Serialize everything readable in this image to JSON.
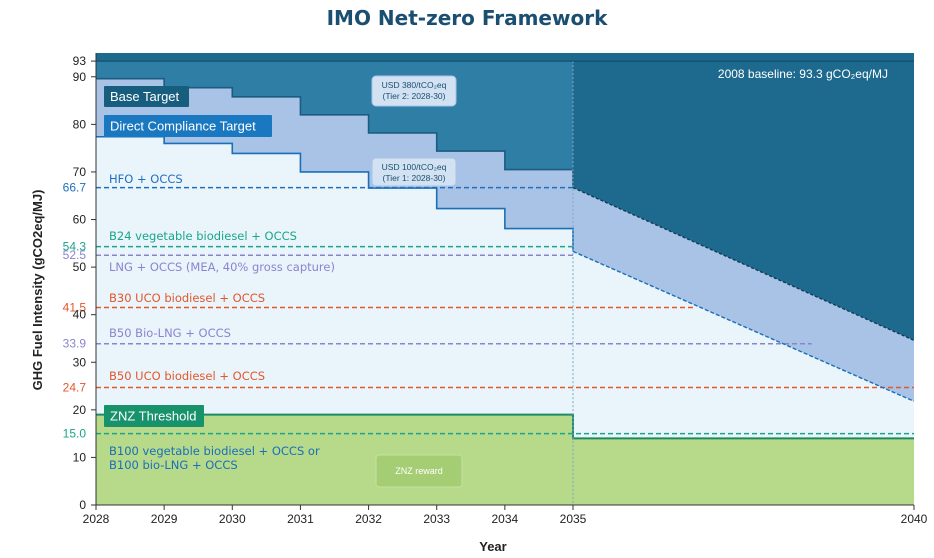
{
  "chart_data": {
    "type": "area",
    "title": "IMO Net-zero Framework",
    "xlabel": "Year",
    "ylabel": "GHG Fuel Intensity (gCO2eq/MJ)",
    "ylim": [
      0,
      95
    ],
    "xlim": [
      2028,
      2040
    ],
    "x_ticks": [
      2028,
      2029,
      2030,
      2031,
      2032,
      2033,
      2034,
      2035,
      2040
    ],
    "y_ticks": [
      0,
      10,
      20,
      30,
      40,
      50,
      60,
      70,
      80,
      90
    ],
    "baseline": {
      "value": 93.3,
      "tick_label": "93",
      "note": "2008 baseline: 93.3 gCO₂eq/MJ"
    },
    "base_target": {
      "name": "Base Target",
      "x": [
        2028,
        2029,
        2029,
        2030,
        2030,
        2031,
        2031,
        2032,
        2032,
        2033,
        2033,
        2034,
        2034,
        2035,
        2035,
        2040
      ],
      "y": [
        89.6,
        89.6,
        87.7,
        87.7,
        85.8,
        85.8,
        82.0,
        82.0,
        78.2,
        78.2,
        74.4,
        74.4,
        70.5,
        70.5,
        66.7,
        34.6
      ]
    },
    "direct_compliance_target": {
      "name": "Direct Compliance Target",
      "x": [
        2028,
        2029,
        2029,
        2030,
        2030,
        2031,
        2031,
        2032,
        2032,
        2033,
        2033,
        2034,
        2034,
        2035,
        2035,
        2040
      ],
      "y": [
        77.4,
        77.4,
        76.0,
        76.0,
        73.9,
        73.9,
        70.0,
        70.0,
        66.6,
        66.6,
        62.3,
        62.3,
        58.1,
        58.1,
        53.3,
        21.8
      ]
    },
    "znz_threshold": {
      "name": "ZNZ Threshold",
      "x": [
        2028,
        2035,
        2035,
        2040
      ],
      "y": [
        19.0,
        19.0,
        14.0,
        14.0
      ]
    },
    "reference_lines": [
      {
        "value": 66.7,
        "label": "66.7",
        "name": "HFO + OCCS",
        "color": "#1f6fc0",
        "x_end": 2035
      },
      {
        "value": 54.3,
        "label": "54.3",
        "name": "B24 vegetable biodiesel + OCCS",
        "color": "#1aa58a",
        "x_end": 2035
      },
      {
        "value": 52.5,
        "label": "52.5",
        "name": "LNG + OCCS (MEA, 40% gross capture)",
        "color": "#8a84d0",
        "x_end": 2035
      },
      {
        "value": 41.5,
        "label": "41.5",
        "name": "B30 UCO biodiesel + OCCS",
        "color": "#e2572b",
        "x_end": 2036.8
      },
      {
        "value": 33.9,
        "label": "33.9",
        "name": "B50 Bio-LNG + OCCS",
        "color": "#8a84d0",
        "x_end": 2038.5
      },
      {
        "value": 24.7,
        "label": "24.7",
        "name": "B50 UCO biodiesel + OCCS",
        "color": "#e2572b",
        "x_end": 2040
      },
      {
        "value": 15.0,
        "label": "15.0",
        "name": "B100 vegetable biodiesel + OCCS or\nB100 bio-LNG + OCCS",
        "name_lines": [
          "B100 vegetable biodiesel + OCCS or",
          "B100 bio-LNG + OCCS"
        ],
        "color": "#1aa58a",
        "x_end": 2040
      }
    ],
    "annotations": {
      "tier2_lines": [
        "USD 380/tCO₂eq",
        "(Tier 2: 2028-30)"
      ],
      "tier1_lines": [
        "USD 100/tCO₂eq",
        "(Tier 1: 2028-30)"
      ],
      "znz_reward": "ZNZ reward"
    },
    "colors": {
      "above_base": "#2e7ea6",
      "above_base_post2035": "#1e6a8f",
      "tier2_band": "#a9c3e6",
      "compliant": "#eaf4fb",
      "znz_area": "#b6d98a",
      "znz_line": "#1c8a67",
      "base_box": "#175d7e",
      "dct_box": "#1a78c0",
      "znz_box": "#17926a"
    }
  }
}
